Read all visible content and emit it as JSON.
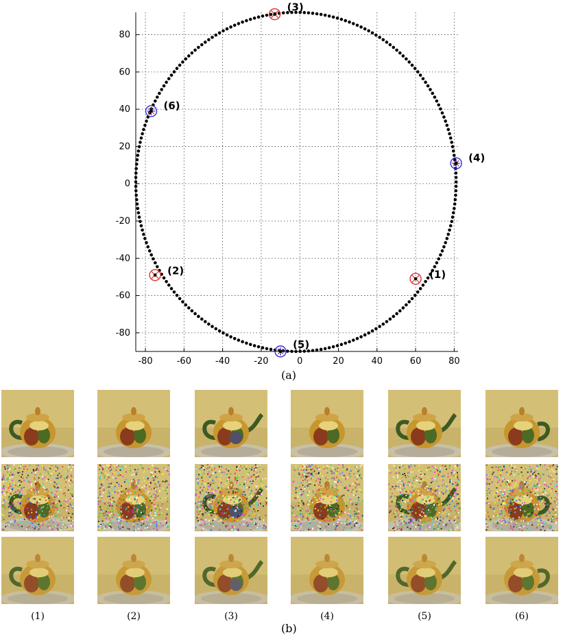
{
  "chart_data": {
    "type": "scatter",
    "xlim": [
      -85,
      82
    ],
    "ylim": [
      -90,
      92
    ],
    "xticks": [
      "-80",
      "-60",
      "-40",
      "-20",
      "0",
      "20",
      "40",
      "60",
      "80"
    ],
    "yticks": [
      "80",
      "60",
      "40",
      "20",
      "0",
      "-20",
      "-40",
      "-60",
      "-80"
    ],
    "grid": true,
    "trajectory": {
      "shape": "closed-loop",
      "center": [
        -2,
        1
      ],
      "rx": 83,
      "ry": 91,
      "points": 240
    },
    "markers": [
      {
        "label": "(1)",
        "x": 60,
        "y": -51,
        "circle_color": "#e03030",
        "inner": "x"
      },
      {
        "label": "(2)",
        "x": -75,
        "y": -49,
        "circle_color": "#e03030",
        "inner": "x"
      },
      {
        "label": "(3)",
        "x": -13,
        "y": 91,
        "circle_color": "#e03030",
        "inner": "x"
      },
      {
        "label": "(4)",
        "x": 81,
        "y": 11,
        "circle_color": "#3030d0",
        "inner": "star"
      },
      {
        "label": "(5)",
        "x": -10,
        "y": -90,
        "circle_color": "#3030d0",
        "inner": "star"
      },
      {
        "label": "(6)",
        "x": -77,
        "y": 39,
        "circle_color": "#3030d0",
        "inner": "star"
      }
    ],
    "xlabel": "",
    "ylabel": "",
    "title": ""
  },
  "captions": {
    "a": "(a)",
    "b": "(b)"
  },
  "images": {
    "column_labels": [
      "(1)",
      "(2)",
      "(3)",
      "(4)",
      "(5)",
      "(6)"
    ],
    "rows": [
      "clean",
      "noisy",
      "recovered"
    ]
  }
}
